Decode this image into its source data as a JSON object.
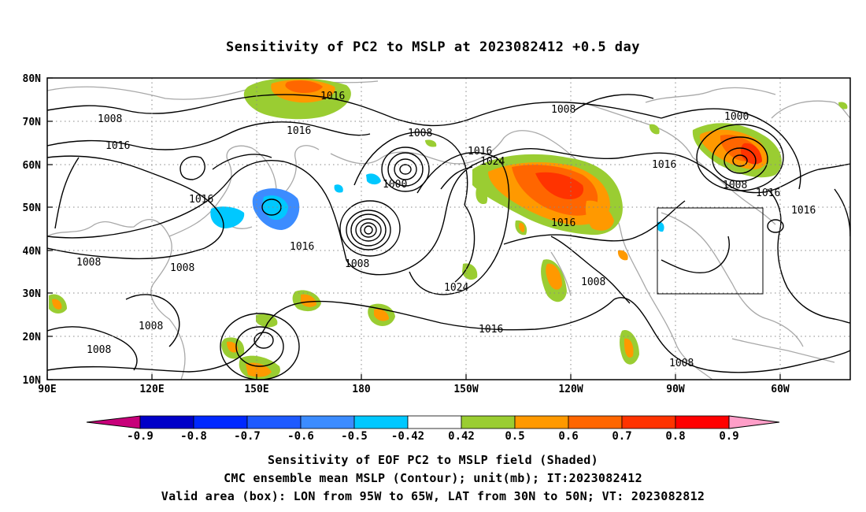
{
  "title": "Sensitivity of PC2 to MSLP at 2023082412 +0.5 day",
  "map": {
    "lat_labels": [
      "80N",
      "70N",
      "60N",
      "50N",
      "40N",
      "30N",
      "20N",
      "10N"
    ],
    "lon_labels": [
      "90E",
      "120E",
      "150E",
      "180",
      "150W",
      "120W",
      "90W",
      "60W"
    ],
    "valid_box": {
      "lon_from": "95W",
      "lon_to": "65W",
      "lat_from": "30N",
      "lat_to": "50N"
    },
    "contour_labels": [
      {
        "text": "1016",
        "where": "north pacific top"
      },
      {
        "text": "1008",
        "where": "arctic center"
      },
      {
        "text": "1008",
        "where": "north west"
      },
      {
        "text": "1016",
        "where": "siberia"
      },
      {
        "text": "1016",
        "where": "bering"
      },
      {
        "text": "1008",
        "where": "aleutian"
      },
      {
        "text": "1016",
        "where": "gulf of alaska"
      },
      {
        "text": "1024",
        "where": "gulf of alaska high"
      },
      {
        "text": "1000",
        "where": "aleutian low"
      },
      {
        "text": "1016",
        "where": "japan"
      },
      {
        "text": "1016",
        "where": "western pacific"
      },
      {
        "text": "1008",
        "where": "mid pacific low"
      },
      {
        "text": "1024",
        "where": "pacific high"
      },
      {
        "text": "1016",
        "where": "pacific subtropics"
      },
      {
        "text": "1016",
        "where": "western north america"
      },
      {
        "text": "1008",
        "where": "southwest us"
      },
      {
        "text": "1016",
        "where": "canada"
      },
      {
        "text": "1000",
        "where": "labrador low"
      },
      {
        "text": "1008",
        "where": "hudson"
      },
      {
        "text": "1016",
        "where": "east canada"
      },
      {
        "text": "1016",
        "where": "atlantic"
      },
      {
        "text": "1008",
        "where": "east asia"
      },
      {
        "text": "1008",
        "where": "china"
      },
      {
        "text": "1008",
        "where": "south china"
      },
      {
        "text": "1008",
        "where": "indochina"
      },
      {
        "text": "1008",
        "where": "central america"
      }
    ]
  },
  "colorbar": {
    "labels": [
      "-0.9",
      "-0.8",
      "-0.7",
      "-0.6",
      "-0.5",
      "-0.42",
      "0.42",
      "0.5",
      "0.6",
      "0.7",
      "0.8",
      "0.9"
    ],
    "colors": [
      "#0000c8",
      "#0028ff",
      "#1e5aff",
      "#3c8cff",
      "#00c8ff",
      "#ffffff",
      "#9acd32",
      "#ff9900",
      "#ff6600",
      "#ff3300",
      "#ff0000"
    ],
    "end_colors": {
      "low": "#c8007a",
      "high": "#ff9ec8"
    }
  },
  "captions": {
    "line1": "Sensitivity of EOF PC2 to MSLP field (Shaded)",
    "line2": "CMC ensemble mean MSLP (Contour); unit(mb); IT:2023082412",
    "line3": "Valid area (box): LON from 95W to 65W, LAT from 30N to 50N; VT: 2023082812"
  }
}
